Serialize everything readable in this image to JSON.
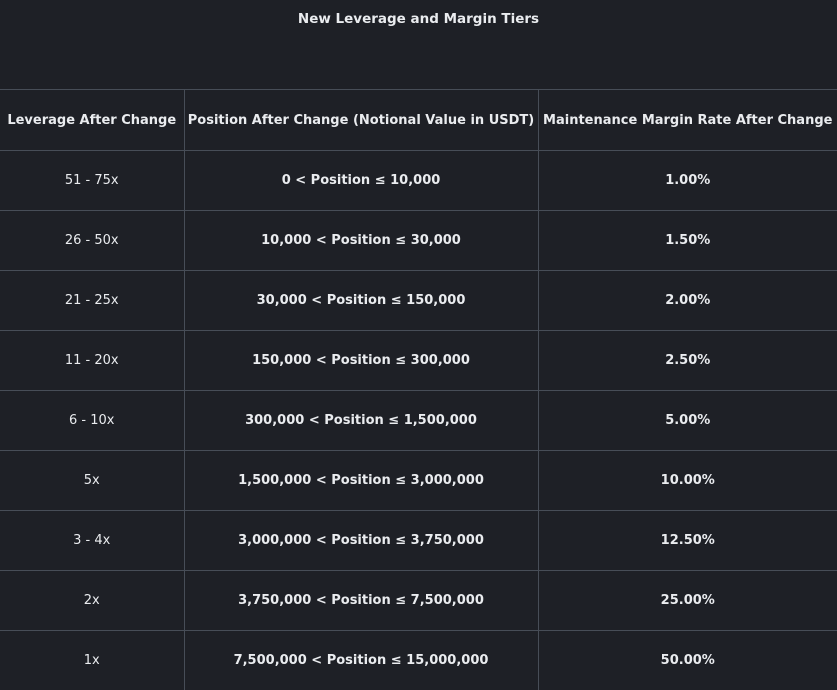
{
  "title": "New Leverage and Margin Tiers",
  "table": {
    "headers": [
      "Leverage After Change",
      "Position After Change (Notional Value in USDT)",
      "Maintenance Margin Rate After Change"
    ],
    "rows": [
      {
        "leverage": "51 - 75x",
        "position": "0 < Position ≤ 10,000",
        "rate": "1.00%"
      },
      {
        "leverage": "26 - 50x",
        "position": "10,000 < Position ≤ 30,000",
        "rate": "1.50%"
      },
      {
        "leverage": "21 - 25x",
        "position": "30,000 < Position ≤ 150,000",
        "rate": "2.00%"
      },
      {
        "leverage": "11 - 20x",
        "position": "150,000 < Position ≤ 300,000",
        "rate": "2.50%"
      },
      {
        "leverage": "6 - 10x",
        "position": "300,000 < Position ≤ 1,500,000",
        "rate": "5.00%"
      },
      {
        "leverage": "5x",
        "position": "1,500,000 < Position ≤ 3,000,000",
        "rate": "10.00%"
      },
      {
        "leverage": "3 - 4x",
        "position": "3,000,000 < Position ≤ 3,750,000",
        "rate": "12.50%"
      },
      {
        "leverage": "2x",
        "position": "3,750,000 < Position ≤ 7,500,000",
        "rate": "25.00%"
      },
      {
        "leverage": "1x",
        "position": "7,500,000 < Position ≤ 15,000,000",
        "rate": "50.00%"
      }
    ]
  }
}
